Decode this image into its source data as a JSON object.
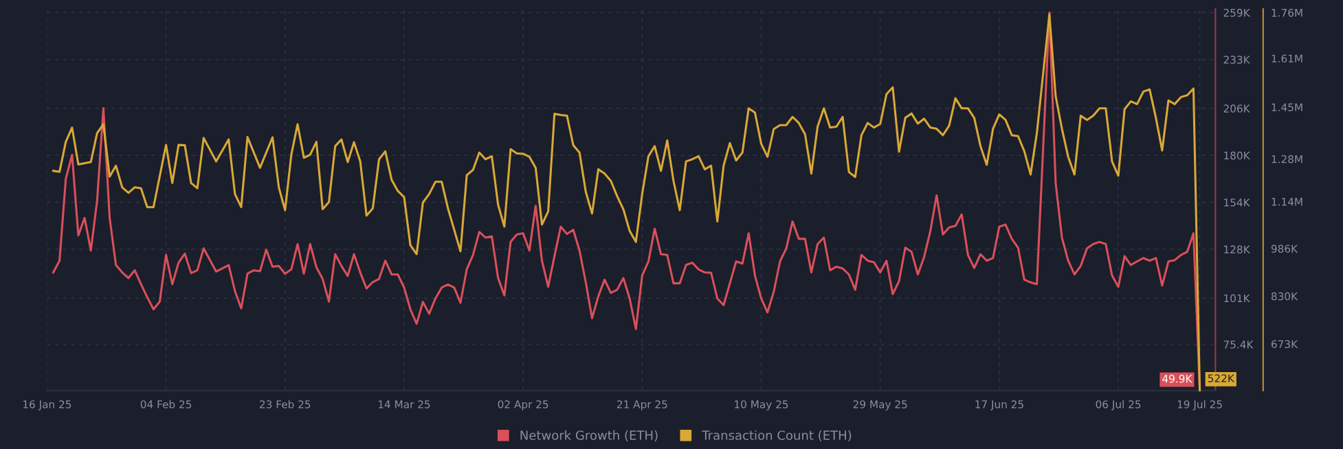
{
  "chart_data": {
    "type": "line",
    "xlim": [
      "2025-01-16",
      "2025-07-21T12:00"
    ],
    "xticks": [
      {
        "value": "2025-01-16",
        "label": "16 Jan 25"
      },
      {
        "value": "2025-02-04",
        "label": "04 Feb 25"
      },
      {
        "value": "2025-02-23",
        "label": "23 Feb 25"
      },
      {
        "value": "2025-03-14",
        "label": "14 Mar 25"
      },
      {
        "value": "2025-04-02",
        "label": "02 Apr 25"
      },
      {
        "value": "2025-04-21",
        "label": "21 Apr 25"
      },
      {
        "value": "2025-05-10",
        "label": "10 May 25"
      },
      {
        "value": "2025-05-29",
        "label": "29 May 25"
      },
      {
        "value": "2025-06-17",
        "label": "17 Jun 25"
      },
      {
        "value": "2025-07-06",
        "label": "06 Jul 25"
      },
      {
        "value": "2025-07-19",
        "label": "19 Jul 25"
      }
    ],
    "ylim": [
      49800,
      261000
    ],
    "yticks": [
      {
        "value": 75400,
        "label": "75.4K"
      },
      {
        "value": 101000,
        "label": "101K"
      },
      {
        "value": 128000,
        "label": "128K"
      },
      {
        "value": 154000,
        "label": "154K"
      },
      {
        "value": 180000,
        "label": "180K"
      },
      {
        "value": 206000,
        "label": "206K"
      },
      {
        "value": 233000,
        "label": "233K"
      },
      {
        "value": 259000,
        "label": "259K"
      }
    ],
    "y2lim": [
      520000,
      1772000
    ],
    "y2ticks": [
      {
        "value": 673000,
        "label": "673K"
      },
      {
        "value": 830000,
        "label": "830K"
      },
      {
        "value": 986000,
        "label": "986K"
      },
      {
        "value": 1140000,
        "label": "1.14M"
      },
      {
        "value": 1280000,
        "label": "1.28M"
      },
      {
        "value": 1450000,
        "label": "1.45M"
      },
      {
        "value": 1610000,
        "label": "1.61M"
      },
      {
        "value": 1760000,
        "label": "1.76M"
      }
    ],
    "grid": true,
    "legend": "bottom",
    "marker": "none",
    "line_style": "solid",
    "series": [
      {
        "name": "Network Growth (ETH)",
        "color": "#d9505a",
        "axis": "y",
        "x": [
          "2025-01-17",
          "2025-01-18",
          "2025-01-19",
          "2025-01-20",
          "2025-01-21",
          "2025-01-22",
          "2025-01-23",
          "2025-01-24",
          "2025-01-25",
          "2025-01-26",
          "2025-01-27",
          "2025-01-28",
          "2025-01-29",
          "2025-01-30",
          "2025-01-31",
          "2025-02-01",
          "2025-02-02",
          "2025-02-03",
          "2025-02-04",
          "2025-02-05",
          "2025-02-06",
          "2025-02-07",
          "2025-02-08",
          "2025-02-09",
          "2025-02-10",
          "2025-02-12",
          "2025-02-14",
          "2025-02-15",
          "2025-02-16",
          "2025-02-17",
          "2025-02-18",
          "2025-02-19",
          "2025-02-20",
          "2025-02-21",
          "2025-02-22",
          "2025-02-23",
          "2025-02-24",
          "2025-02-25",
          "2025-02-26",
          "2025-02-27",
          "2025-02-28",
          "2025-03-01",
          "2025-03-02",
          "2025-03-03",
          "2025-03-04",
          "2025-03-05",
          "2025-03-06",
          "2025-03-07",
          "2025-03-08",
          "2025-03-09",
          "2025-03-10",
          "2025-03-11",
          "2025-03-12",
          "2025-03-13",
          "2025-03-14",
          "2025-03-15",
          "2025-03-16",
          "2025-03-17",
          "2025-03-18",
          "2025-03-19",
          "2025-03-20",
          "2025-03-21",
          "2025-03-22",
          "2025-03-23",
          "2025-03-24",
          "2025-03-25",
          "2025-03-26",
          "2025-03-27",
          "2025-03-28",
          "2025-03-29",
          "2025-03-30",
          "2025-03-31",
          "2025-04-01",
          "2025-04-02",
          "2025-04-03",
          "2025-04-04",
          "2025-04-05",
          "2025-04-06",
          "2025-04-07",
          "2025-04-08",
          "2025-04-09",
          "2025-04-10",
          "2025-04-11",
          "2025-04-12",
          "2025-04-13",
          "2025-04-14",
          "2025-04-15",
          "2025-04-16",
          "2025-04-17",
          "2025-04-18",
          "2025-04-19",
          "2025-04-20",
          "2025-04-21",
          "2025-04-22",
          "2025-04-23",
          "2025-04-24",
          "2025-04-25",
          "2025-04-26",
          "2025-04-27",
          "2025-04-28",
          "2025-04-29",
          "2025-04-30",
          "2025-05-01",
          "2025-05-02",
          "2025-05-03",
          "2025-05-04",
          "2025-05-05",
          "2025-05-06",
          "2025-05-07",
          "2025-05-08",
          "2025-05-09",
          "2025-05-10",
          "2025-05-11",
          "2025-05-12",
          "2025-05-13",
          "2025-05-14",
          "2025-05-15",
          "2025-05-16",
          "2025-05-17",
          "2025-05-18",
          "2025-05-19",
          "2025-05-20",
          "2025-05-21",
          "2025-05-22",
          "2025-05-23",
          "2025-05-24",
          "2025-05-25",
          "2025-05-26",
          "2025-05-27",
          "2025-05-28",
          "2025-05-29",
          "2025-05-30",
          "2025-05-31",
          "2025-06-01",
          "2025-06-02",
          "2025-06-03",
          "2025-06-04",
          "2025-06-05",
          "2025-06-06",
          "2025-06-07",
          "2025-06-08",
          "2025-06-09",
          "2025-06-10",
          "2025-06-11",
          "2025-06-12",
          "2025-06-13",
          "2025-06-14",
          "2025-06-15",
          "2025-06-16",
          "2025-06-17",
          "2025-06-18",
          "2025-06-19",
          "2025-06-20",
          "2025-06-21",
          "2025-06-22",
          "2025-06-23",
          "2025-06-25",
          "2025-06-26",
          "2025-06-27",
          "2025-06-28",
          "2025-06-29",
          "2025-06-30",
          "2025-07-01",
          "2025-07-02",
          "2025-07-03",
          "2025-07-04",
          "2025-07-05",
          "2025-07-06",
          "2025-07-07",
          "2025-07-08",
          "2025-07-09",
          "2025-07-10",
          "2025-07-11",
          "2025-07-12",
          "2025-07-13",
          "2025-07-14",
          "2025-07-15",
          "2025-07-16",
          "2025-07-17",
          "2025-07-18",
          "2025-07-19"
        ],
        "values": [
          115200,
          121700,
          167000,
          180300,
          135700,
          145400,
          127300,
          155000,
          206100,
          145400,
          119300,
          115200,
          112100,
          116400,
          108700,
          101500,
          94800,
          99100,
          124900,
          108700,
          120600,
          125600,
          114800,
          116400,
          128500,
          115700,
          119300,
          104900,
          95300,
          114500,
          116400,
          115900,
          127800,
          118400,
          118800,
          114500,
          116900,
          130900,
          114500,
          130900,
          118100,
          111600,
          99100,
          125300,
          118800,
          113300,
          125300,
          115200,
          106300,
          109900,
          111600,
          121700,
          114100,
          114100,
          106800,
          94800,
          86800,
          98900,
          92400,
          100800,
          106800,
          108500,
          106800,
          98400,
          116900,
          124900,
          137600,
          134500,
          135200,
          112100,
          102500,
          132100,
          136200,
          136900,
          127300,
          152100,
          121700,
          107300,
          124200,
          140500,
          136500,
          138800,
          127300,
          109700,
          89900,
          102000,
          111200,
          103900,
          105600,
          112100,
          100800,
          83900,
          113500,
          121300,
          139400,
          125300,
          124900,
          109200,
          109200,
          119300,
          120600,
          116900,
          115200,
          115000,
          100800,
          97100,
          109200,
          121300,
          120100,
          136900,
          113500,
          100800,
          93100,
          104400,
          121300,
          128500,
          143400,
          133800,
          133800,
          115200,
          130900,
          134500,
          116400,
          118400,
          117400,
          114100,
          105600,
          124900,
          121700,
          120800,
          115200,
          121700,
          103200,
          110400,
          128900,
          126600,
          114100,
          123700,
          138100,
          157900,
          136200,
          140100,
          141000,
          147300,
          124900,
          117700,
          125300,
          121700,
          123200,
          140500,
          141700,
          133800,
          128900,
          111200,
          109700,
          108700,
          259000,
          164700,
          134500,
          121700,
          114100,
          118800,
          128500,
          130900,
          132100,
          130900,
          113500,
          107300,
          124200,
          119300,
          121300,
          123200,
          121700,
          123200,
          108000,
          121300,
          122000,
          124900,
          126600,
          136900,
          49900
        ],
        "value_labels": [
          null,
          null,
          null,
          null,
          null,
          null,
          null,
          null,
          null,
          null,
          null,
          null,
          null,
          null,
          null,
          null,
          null,
          null,
          null,
          null,
          null,
          null,
          null,
          null,
          null,
          null,
          null,
          null,
          null,
          null,
          null,
          null,
          null,
          null,
          null,
          null,
          null,
          null,
          null,
          null,
          null,
          null,
          null,
          null,
          null,
          null,
          null,
          null,
          null,
          null,
          null,
          null,
          null,
          null,
          null,
          null,
          null,
          null,
          null,
          null,
          null,
          null,
          null,
          null,
          null,
          null,
          null,
          null,
          null,
          null,
          null,
          null,
          null,
          null,
          null,
          null,
          null,
          null,
          null,
          null,
          null,
          null,
          null,
          null,
          null,
          null,
          null,
          null,
          null,
          null,
          null,
          null,
          null,
          null,
          null,
          null,
          null,
          null,
          null,
          null,
          null,
          null,
          null,
          null,
          null,
          null,
          null,
          null,
          null,
          null,
          null,
          null,
          null,
          null,
          null,
          null,
          null,
          null,
          null,
          null,
          null,
          null,
          null,
          null,
          null,
          null,
          null,
          null,
          null,
          null,
          null,
          null,
          null,
          null,
          null,
          null,
          null,
          null,
          null,
          null,
          null,
          null,
          null,
          null,
          null,
          null,
          null,
          null,
          null,
          null,
          null,
          null,
          null,
          null,
          null,
          null,
          null,
          null,
          null,
          null,
          null,
          null,
          null,
          null,
          null,
          null,
          null,
          null,
          null,
          null,
          null,
          null,
          null,
          null,
          null,
          null,
          null,
          null,
          null,
          null,
          "49.9K"
        ]
      },
      {
        "name": "Transaction Count (ETH)",
        "color": "#d9a935",
        "axis": "y2",
        "x": [
          "2025-01-17",
          "2025-01-18",
          "2025-01-19",
          "2025-01-20",
          "2025-01-21",
          "2025-01-23",
          "2025-01-24",
          "2025-01-25",
          "2025-01-26",
          "2025-01-27",
          "2025-01-28",
          "2025-01-29",
          "2025-01-30",
          "2025-01-31",
          "2025-02-01",
          "2025-02-02",
          "2025-02-04",
          "2025-02-05",
          "2025-02-06",
          "2025-02-07",
          "2025-02-08",
          "2025-02-09",
          "2025-02-10",
          "2025-02-12",
          "2025-02-14",
          "2025-02-15",
          "2025-02-16",
          "2025-02-17",
          "2025-02-19",
          "2025-02-21",
          "2025-02-22",
          "2025-02-23",
          "2025-02-24",
          "2025-02-25",
          "2025-02-26",
          "2025-02-27",
          "2025-02-28",
          "2025-03-01",
          "2025-03-02",
          "2025-03-03",
          "2025-03-04",
          "2025-03-05",
          "2025-03-06",
          "2025-03-07",
          "2025-03-08",
          "2025-03-09",
          "2025-03-10",
          "2025-03-11",
          "2025-03-12",
          "2025-03-13",
          "2025-03-14",
          "2025-03-15",
          "2025-03-16",
          "2025-03-17",
          "2025-03-18",
          "2025-03-19",
          "2025-03-20",
          "2025-03-21",
          "2025-03-23",
          "2025-03-24",
          "2025-03-25",
          "2025-03-26",
          "2025-03-27",
          "2025-03-28",
          "2025-03-29",
          "2025-03-30",
          "2025-03-31",
          "2025-04-01",
          "2025-04-02",
          "2025-04-03",
          "2025-04-04",
          "2025-04-05",
          "2025-04-06",
          "2025-04-07",
          "2025-04-08",
          "2025-04-09",
          "2025-04-10",
          "2025-04-11",
          "2025-04-12",
          "2025-04-13",
          "2025-04-14",
          "2025-04-15",
          "2025-04-16",
          "2025-04-17",
          "2025-04-18",
          "2025-04-19",
          "2025-04-20",
          "2025-04-21",
          "2025-04-22",
          "2025-04-23",
          "2025-04-24",
          "2025-04-25",
          "2025-04-26",
          "2025-04-27",
          "2025-04-28",
          "2025-04-29",
          "2025-04-30",
          "2025-05-01",
          "2025-05-02",
          "2025-05-03",
          "2025-05-04",
          "2025-05-05",
          "2025-05-06",
          "2025-05-07",
          "2025-05-08",
          "2025-05-09",
          "2025-05-10",
          "2025-05-11",
          "2025-05-12",
          "2025-05-13",
          "2025-05-14",
          "2025-05-15",
          "2025-05-16",
          "2025-05-17",
          "2025-05-18",
          "2025-05-19",
          "2025-05-20",
          "2025-05-21",
          "2025-05-22",
          "2025-05-23",
          "2025-05-24",
          "2025-05-25",
          "2025-05-26",
          "2025-05-27",
          "2025-05-28",
          "2025-05-29",
          "2025-05-30",
          "2025-05-31",
          "2025-06-01",
          "2025-06-02",
          "2025-06-03",
          "2025-06-04",
          "2025-06-05",
          "2025-06-06",
          "2025-06-07",
          "2025-06-08",
          "2025-06-09",
          "2025-06-10",
          "2025-06-11",
          "2025-06-12",
          "2025-06-13",
          "2025-06-14",
          "2025-06-15",
          "2025-06-16",
          "2025-06-17",
          "2025-06-18",
          "2025-06-19",
          "2025-06-20",
          "2025-06-21",
          "2025-06-22",
          "2025-06-23",
          "2025-06-25",
          "2025-06-26",
          "2025-06-27",
          "2025-06-28",
          "2025-06-29",
          "2025-06-30",
          "2025-07-01",
          "2025-07-02",
          "2025-07-03",
          "2025-07-04",
          "2025-07-05",
          "2025-07-06",
          "2025-07-07",
          "2025-07-08",
          "2025-07-09",
          "2025-07-10",
          "2025-07-11",
          "2025-07-12",
          "2025-07-13",
          "2025-07-14",
          "2025-07-15",
          "2025-07-16",
          "2025-07-17",
          "2025-07-18",
          "2025-07-19"
        ],
        "values": [
          1241000,
          1238000,
          1336000,
          1383000,
          1262000,
          1270000,
          1365000,
          1394000,
          1222000,
          1258000,
          1187000,
          1169000,
          1187000,
          1184000,
          1122000,
          1122000,
          1326000,
          1201000,
          1326000,
          1325000,
          1201000,
          1184000,
          1349000,
          1272000,
          1344000,
          1165000,
          1122000,
          1352000,
          1251000,
          1351000,
          1187000,
          1112000,
          1294000,
          1394000,
          1284000,
          1294000,
          1336000,
          1115000,
          1139000,
          1322000,
          1344000,
          1270000,
          1335000,
          1272000,
          1094000,
          1118000,
          1279000,
          1305000,
          1212000,
          1175000,
          1155000,
          997000,
          968000,
          1137000,
          1165000,
          1205000,
          1205000,
          1118000,
          977000,
          1227000,
          1244000,
          1301000,
          1279000,
          1289000,
          1130000,
          1058000,
          1312000,
          1298000,
          1297000,
          1287000,
          1251000,
          1065000,
          1108000,
          1428000,
          1424000,
          1422000,
          1325000,
          1301000,
          1172000,
          1101000,
          1246000,
          1232000,
          1208000,
          1158000,
          1115000,
          1044000,
          1008000,
          1165000,
          1289000,
          1322000,
          1241000,
          1341000,
          1208000,
          1112000,
          1272000,
          1279000,
          1289000,
          1246000,
          1258000,
          1075000,
          1258000,
          1332000,
          1275000,
          1301000,
          1446000,
          1432000,
          1330000,
          1287000,
          1378000,
          1391000,
          1391000,
          1418000,
          1398000,
          1361000,
          1232000,
          1386000,
          1446000,
          1383000,
          1386000,
          1418000,
          1237000,
          1221000,
          1358000,
          1398000,
          1383000,
          1395000,
          1493000,
          1515000,
          1304000,
          1415000,
          1429000,
          1396000,
          1412000,
          1383000,
          1379000,
          1358000,
          1389000,
          1479000,
          1446000,
          1446000,
          1415000,
          1322000,
          1261000,
          1379000,
          1426000,
          1408000,
          1358000,
          1355000,
          1305000,
          1229000,
          1365000,
          1754000,
          1486000,
          1379000,
          1287000,
          1229000,
          1422000,
          1408000,
          1422000,
          1446000,
          1446000,
          1272000,
          1225000,
          1443000,
          1469000,
          1460000,
          1501000,
          1508000,
          1415000,
          1308000,
          1472000,
          1460000,
          1483000,
          1489000,
          1511000,
          522000
        ],
        "value_labels": [
          null,
          null,
          null,
          null,
          null,
          null,
          null,
          null,
          null,
          null,
          null,
          null,
          null,
          null,
          null,
          null,
          null,
          null,
          null,
          null,
          null,
          null,
          null,
          null,
          null,
          null,
          null,
          null,
          null,
          null,
          null,
          null,
          null,
          null,
          null,
          null,
          null,
          null,
          null,
          null,
          null,
          null,
          null,
          null,
          null,
          null,
          null,
          null,
          null,
          null,
          null,
          null,
          null,
          null,
          null,
          null,
          null,
          null,
          null,
          null,
          null,
          null,
          null,
          null,
          null,
          null,
          null,
          null,
          null,
          null,
          null,
          null,
          null,
          null,
          null,
          null,
          null,
          null,
          null,
          null,
          null,
          null,
          null,
          null,
          null,
          null,
          null,
          null,
          null,
          null,
          null,
          null,
          null,
          null,
          null,
          null,
          null,
          null,
          null,
          null,
          null,
          null,
          null,
          null,
          null,
          null,
          null,
          null,
          null,
          null,
          null,
          null,
          null,
          null,
          null,
          null,
          null,
          null,
          null,
          null,
          null,
          null,
          null,
          null,
          null,
          null,
          null,
          null,
          null,
          null,
          null,
          null,
          null,
          null,
          null,
          null,
          null,
          null,
          null,
          null,
          null,
          null,
          null,
          null,
          null,
          null,
          null,
          null,
          null,
          null,
          null,
          null,
          null,
          null,
          null,
          null,
          null,
          null,
          null,
          null,
          null,
          null,
          null,
          null,
          null,
          null,
          null,
          null,
          null,
          null,
          null,
          null,
          null,
          null,
          null,
          "522K"
        ]
      }
    ]
  }
}
